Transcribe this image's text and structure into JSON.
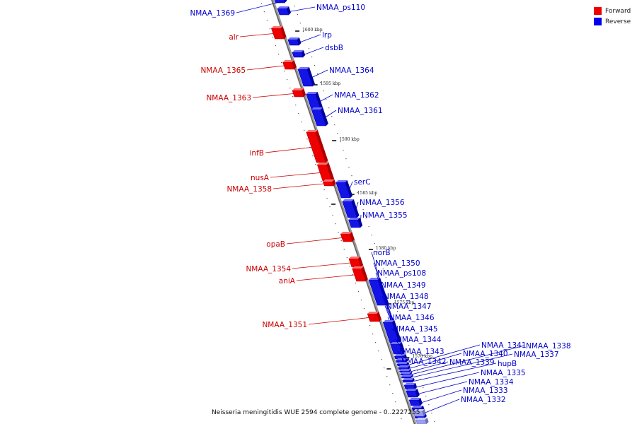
{
  "genome": {
    "caption": "Neisseria meningitidis WUE 2594 complete genome - 0..2227255"
  },
  "legend": {
    "items": [
      {
        "label": "Forward",
        "color": "#ee0000"
      },
      {
        "label": "Reverse",
        "color": "#0000ee"
      }
    ]
  },
  "ticks": [
    {
      "label": "1600 kbp"
    },
    {
      "label": "1595 kbp"
    },
    {
      "label": "1590 kbp"
    },
    {
      "label": "1585 kbp"
    },
    {
      "label": "1580 kbp"
    },
    {
      "label": "1575 kbp"
    },
    {
      "label": "1570 kbp"
    }
  ],
  "genes": {
    "forward": [
      {
        "name": "alr"
      },
      {
        "name": "NMAA_1365"
      },
      {
        "name": "NMAA_1363"
      },
      {
        "name": "infB"
      },
      {
        "name": "nusA"
      },
      {
        "name": "NMAA_1358"
      },
      {
        "name": "opaB"
      },
      {
        "name": "NMAA_1354"
      },
      {
        "name": "aniA"
      },
      {
        "name": "NMAA_1351"
      }
    ],
    "reverse": [
      {
        "name": "NMAA_1369"
      },
      {
        "name": "NMAA_ps110"
      },
      {
        "name": "lrp"
      },
      {
        "name": "dsbB"
      },
      {
        "name": "NMAA_1364"
      },
      {
        "name": "NMAA_1362"
      },
      {
        "name": "NMAA_1361"
      },
      {
        "name": "serC"
      },
      {
        "name": "NMAA_1356"
      },
      {
        "name": "NMAA_1355"
      },
      {
        "name": "norB"
      },
      {
        "name": "NMAA_1350"
      },
      {
        "name": "NMAA_ps108"
      },
      {
        "name": "NMAA_1349"
      },
      {
        "name": "NMAA_1348"
      },
      {
        "name": "NMAA_1347"
      },
      {
        "name": "NMAA_1346"
      },
      {
        "name": "NMAA_1345"
      },
      {
        "name": "NMAA_1344"
      },
      {
        "name": "NMAA_1343"
      },
      {
        "name": "NMAA_1342"
      },
      {
        "name": "NMAA_1341"
      },
      {
        "name": "NMAA_1340"
      },
      {
        "name": "NMAA_1339"
      },
      {
        "name": "NMAA_1338"
      },
      {
        "name": "NMAA_1337"
      },
      {
        "name": "hupB"
      },
      {
        "name": "NMAA_1335"
      },
      {
        "name": "NMAA_1334"
      },
      {
        "name": "NMAA_1333"
      },
      {
        "name": "NMAA_1332"
      }
    ]
  }
}
